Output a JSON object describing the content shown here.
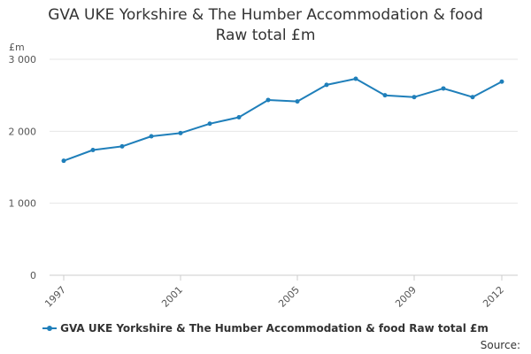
{
  "chart_data": {
    "type": "line",
    "title": "GVA UKE Yorkshire & The Humber Accommodation & food",
    "subtitle": "Raw total £m",
    "ylabel": "£m",
    "xlabel": "",
    "ylim": [
      0,
      3000
    ],
    "yticks": [
      {
        "value": 0,
        "label": "0"
      },
      {
        "value": 1000,
        "label": "1 000"
      },
      {
        "value": 2000,
        "label": "2 000"
      },
      {
        "value": 3000,
        "label": "3 000"
      }
    ],
    "xlim": [
      1997,
      2012
    ],
    "xticks": [
      {
        "value": 1997,
        "label": "1997"
      },
      {
        "value": 2001,
        "label": "2001"
      },
      {
        "value": 2005,
        "label": "2005"
      },
      {
        "value": 2009,
        "label": "2009"
      },
      {
        "value": 2012,
        "label": "2012"
      }
    ],
    "grid": true,
    "legend_position": "bottom",
    "series": [
      {
        "name": "GVA UKE Yorkshire & The Humber Accommodation & food Raw total £m",
        "color": "#1f7fba",
        "points": [
          {
            "x": 1997,
            "y": 1590
          },
          {
            "x": 1998,
            "y": 1740
          },
          {
            "x": 1999,
            "y": 1790
          },
          {
            "x": 2000,
            "y": 1930
          },
          {
            "x": 2001,
            "y": 1975
          },
          {
            "x": 2002,
            "y": 2105
          },
          {
            "x": 2003,
            "y": 2195
          },
          {
            "x": 2004,
            "y": 2435
          },
          {
            "x": 2005,
            "y": 2415
          },
          {
            "x": 2006,
            "y": 2645
          },
          {
            "x": 2007,
            "y": 2730
          },
          {
            "x": 2008,
            "y": 2500
          },
          {
            "x": 2009,
            "y": 2475
          },
          {
            "x": 2010,
            "y": 2595
          },
          {
            "x": 2011,
            "y": 2475
          },
          {
            "x": 2012,
            "y": 2690
          }
        ]
      }
    ]
  },
  "legend": {
    "label": "GVA UKE Yorkshire & The Humber Accommodation & food Raw total £m"
  },
  "source": {
    "label": "Source:"
  }
}
